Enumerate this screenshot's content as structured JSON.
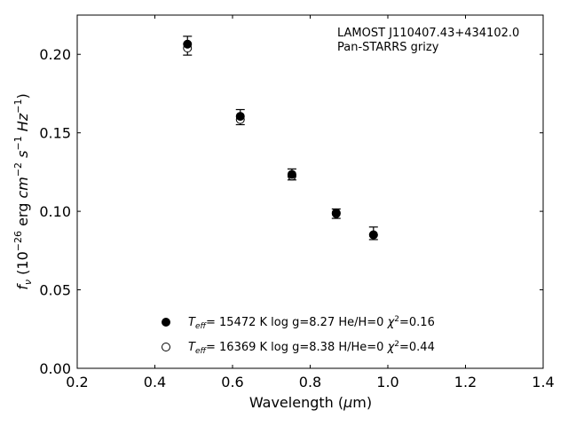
{
  "chart_data": {
    "type": "scatter",
    "title": "",
    "annotation_lines": [
      "LAMOST J110407.43+434102.0",
      "Pan-STARRS grizy"
    ],
    "xlabel": "Wavelength (μm)",
    "ylabel": "f_ν (10^−26 erg cm^−2 s^−1 Hz^−1)",
    "xlim": [
      0.2,
      1.4
    ],
    "ylim": [
      0.0,
      0.225
    ],
    "xticks": [
      "0.2",
      "0.4",
      "0.6",
      "0.8",
      "1.0",
      "1.2",
      "1.4"
    ],
    "yticks": [
      "0.00",
      "0.05",
      "0.10",
      "0.15",
      "0.20"
    ],
    "grid": false,
    "legend_position": "lower-center",
    "observed": {
      "x": [
        0.484,
        0.62,
        0.753,
        0.867,
        0.963
      ],
      "y": [
        0.2055,
        0.16,
        0.1235,
        0.0985,
        0.086
      ],
      "err": [
        0.006,
        0.0048,
        0.0035,
        0.003,
        0.004
      ]
    },
    "series": [
      {
        "marker": "filled",
        "label": "T_eff= 15472 K  log g=8.27  He/H=0  χ²=0.16",
        "x": [
          0.484,
          0.62,
          0.753,
          0.867,
          0.963
        ],
        "y": [
          0.2065,
          0.1605,
          0.1235,
          0.099,
          0.085
        ]
      },
      {
        "marker": "open",
        "label": "T_eff= 16369 K  log g=8.38  H/He=0  χ²=0.44",
        "x": [
          0.484,
          0.62,
          0.753,
          0.867,
          0.963
        ],
        "y": [
          0.204,
          0.1585,
          0.1225,
          0.0985,
          0.085
        ]
      }
    ],
    "legend": [
      {
        "teff_value": "= 15472 K  log g=8.27  He/H=0  ",
        "chi_value": "=0.16"
      },
      {
        "teff_value": "= 16369 K  log g=8.38  H/He=0  ",
        "chi_value": "=0.44"
      }
    ]
  }
}
